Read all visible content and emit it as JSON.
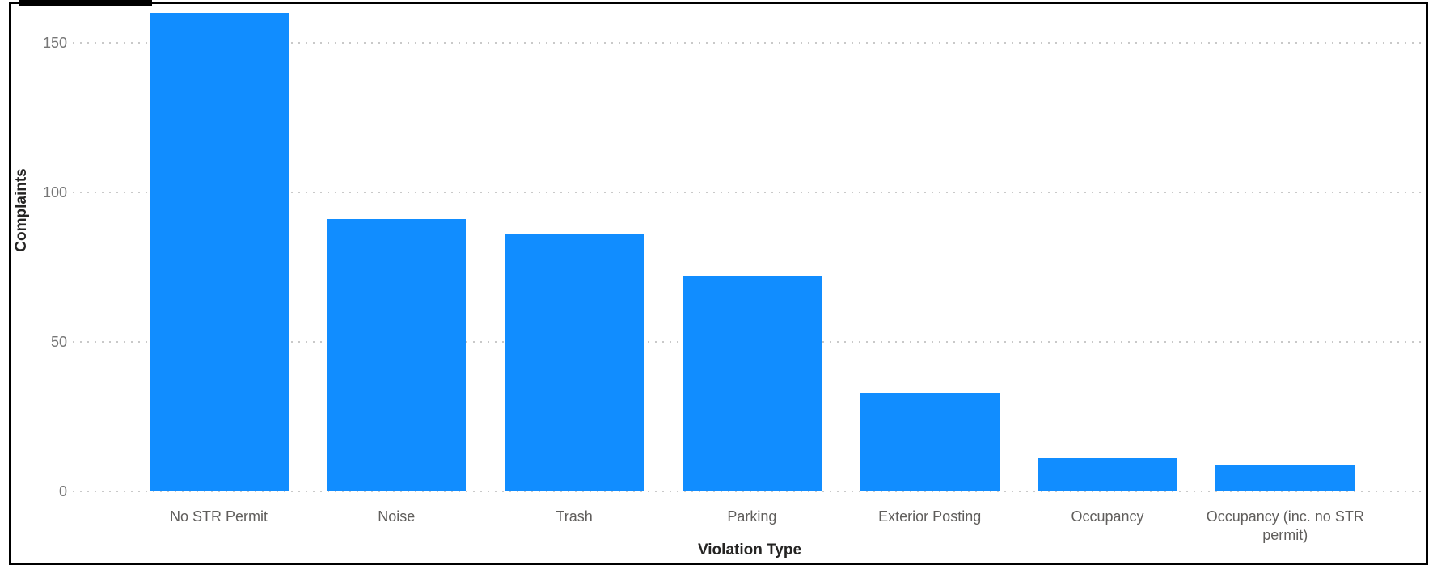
{
  "chart_data": {
    "type": "bar",
    "categories": [
      "No STR Permit",
      "Noise",
      "Trash",
      "Parking",
      "Exterior Posting",
      "Occupancy",
      "Occupancy (inc. no STR permit)"
    ],
    "values": [
      160,
      91,
      86,
      72,
      33,
      11,
      9
    ],
    "title": "",
    "xlabel": "Violation Type",
    "ylabel": "Complaints",
    "ylim": [
      0,
      160
    ],
    "yticks": [
      0,
      50,
      100,
      150
    ],
    "grid": "horizontal-dotted",
    "legend": "none",
    "bar_color": "#118DFF"
  },
  "colors": {
    "bar": "#118DFF",
    "grid": "#C9C9C9",
    "tick_label": "#767676",
    "category_label": "#605E5C",
    "axis_title": "#252423",
    "border": "#000000",
    "background": "#FFFFFF"
  }
}
